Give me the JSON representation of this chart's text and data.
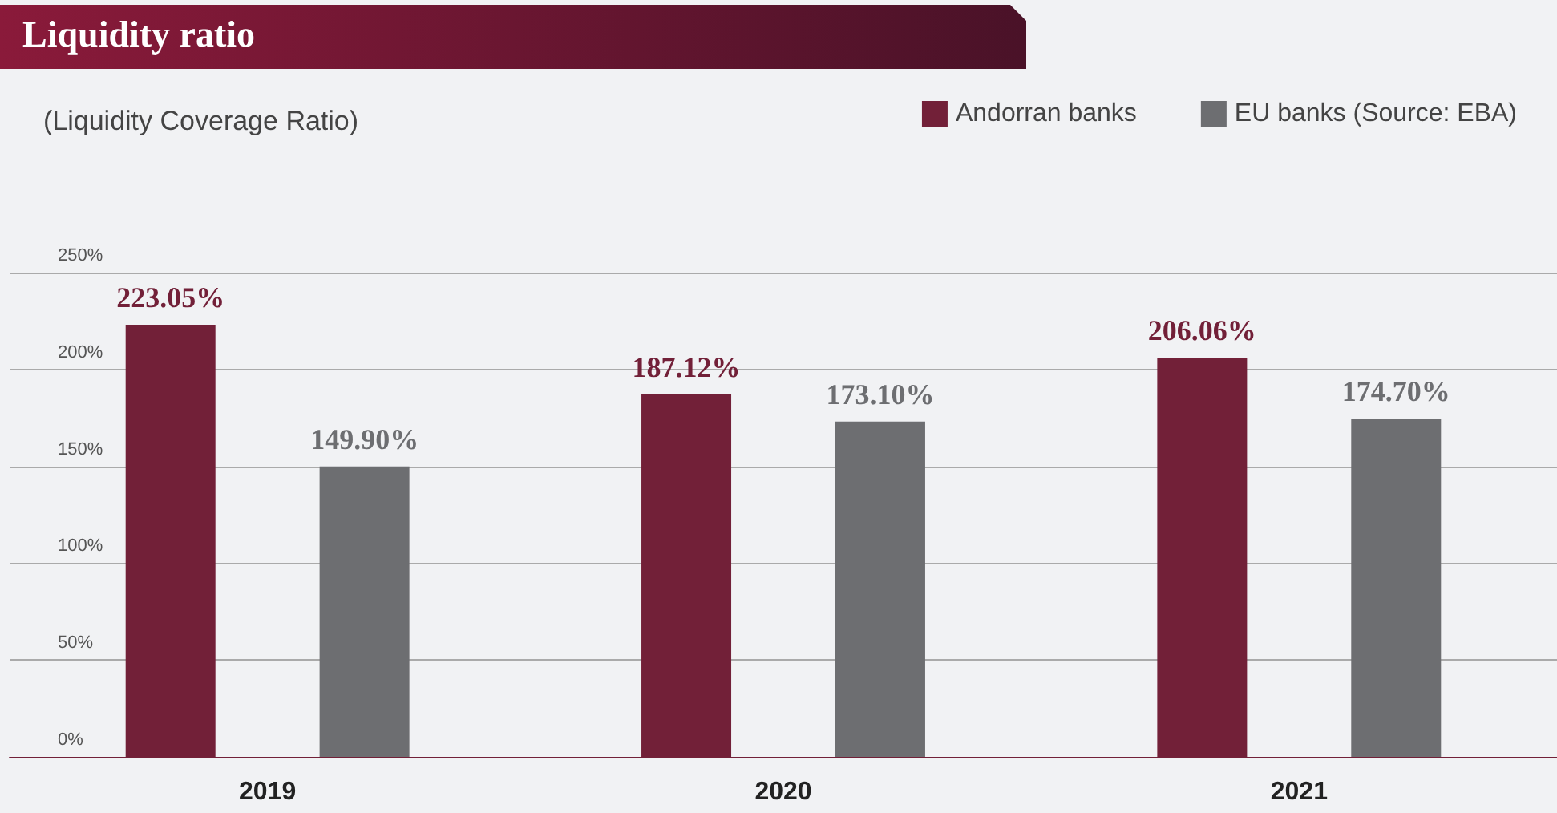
{
  "chart_data": {
    "type": "bar",
    "title": "Liquidity ratio",
    "subtitle": "(Liquidity Coverage Ratio)",
    "categories": [
      "2019",
      "2020",
      "2021"
    ],
    "series": [
      {
        "name": "Andorran banks",
        "color": "#722038",
        "values": [
          223.05,
          187.12,
          206.06
        ],
        "value_labels": [
          "223.05%",
          "187.12%",
          "206.06%"
        ]
      },
      {
        "name": "EU banks (Source: EBA)",
        "color": "#6d6e71",
        "values": [
          149.9,
          173.1,
          174.7
        ],
        "value_labels": [
          "149.90%",
          "173.10%",
          "174.70%"
        ]
      }
    ],
    "ylim": [
      0,
      250
    ],
    "yticks": [
      {
        "value": 0,
        "label": "0%"
      },
      {
        "value": 50,
        "label": "50%"
      },
      {
        "value": 100,
        "label": "100%"
      },
      {
        "value": 150,
        "label": "150%"
      },
      {
        "value": 200,
        "label": "200%"
      },
      {
        "value": 250,
        "label": "250%"
      }
    ],
    "grid": "y",
    "legend": "top right"
  }
}
